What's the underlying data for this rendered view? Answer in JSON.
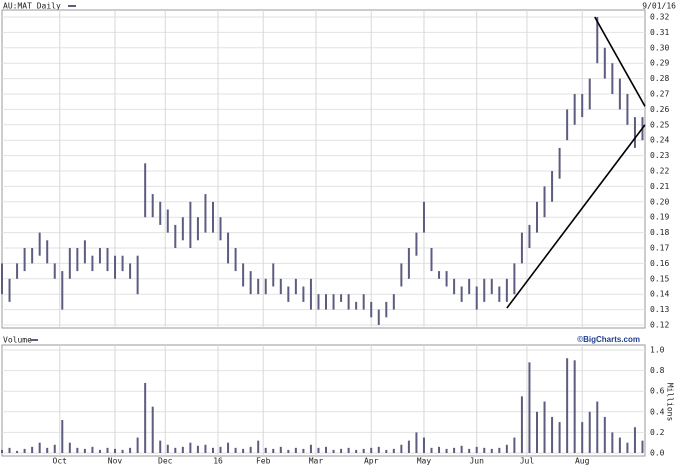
{
  "chart_data": [
    {
      "type": "range",
      "title": "AU:MAT Daily",
      "date": "9/01/16",
      "color": "#5c5c80",
      "grid": true,
      "xlim": [
        0,
        256
      ],
      "xticks": [
        {
          "value": 23,
          "label": "Oct"
        },
        {
          "value": 45,
          "label": "Nov"
        },
        {
          "value": 65,
          "label": "Dec"
        },
        {
          "value": 86,
          "label": "16"
        },
        {
          "value": 104,
          "label": "Feb"
        },
        {
          "value": 125,
          "label": "Mar"
        },
        {
          "value": 147,
          "label": "Apr"
        },
        {
          "value": 168,
          "label": "May"
        },
        {
          "value": 189,
          "label": "Jun"
        },
        {
          "value": 209,
          "label": "Jul"
        },
        {
          "value": 231,
          "label": "Aug"
        }
      ],
      "ylim": [
        0.12,
        0.32
      ],
      "yticks": [
        0.12,
        0.13,
        0.14,
        0.15,
        0.16,
        0.17,
        0.18,
        0.19,
        {
          "value": 0.2,
          "label": "0.20"
        },
        0.21,
        0.22,
        0.23,
        0.24,
        0.25,
        0.26,
        0.27,
        0.28,
        0.29,
        {
          "value": 0.3,
          "label": "0.30"
        },
        0.31,
        0.32
      ],
      "x": [
        0,
        3,
        6,
        9,
        12,
        15,
        18,
        21,
        24,
        27,
        30,
        33,
        36,
        39,
        42,
        45,
        48,
        51,
        54,
        57,
        60,
        63,
        66,
        69,
        72,
        75,
        78,
        81,
        84,
        87,
        90,
        93,
        96,
        99,
        102,
        105,
        108,
        111,
        114,
        117,
        120,
        123,
        126,
        129,
        132,
        135,
        138,
        141,
        144,
        147,
        150,
        153,
        156,
        159,
        162,
        165,
        168,
        171,
        174,
        177,
        180,
        183,
        186,
        189,
        192,
        195,
        198,
        201,
        204,
        207,
        210,
        213,
        216,
        219,
        222,
        225,
        228,
        231,
        234,
        237,
        240,
        243,
        246,
        249,
        252,
        255
      ],
      "high": [
        0.16,
        0.15,
        0.16,
        0.17,
        0.17,
        0.18,
        0.175,
        0.16,
        0.155,
        0.17,
        0.17,
        0.175,
        0.165,
        0.17,
        0.17,
        0.165,
        0.165,
        0.16,
        0.165,
        0.225,
        0.205,
        0.2,
        0.195,
        0.185,
        0.19,
        0.2,
        0.19,
        0.205,
        0.2,
        0.19,
        0.18,
        0.17,
        0.16,
        0.155,
        0.15,
        0.15,
        0.16,
        0.15,
        0.145,
        0.15,
        0.145,
        0.15,
        0.14,
        0.14,
        0.14,
        0.14,
        0.14,
        0.135,
        0.14,
        0.135,
        0.13,
        0.135,
        0.14,
        0.16,
        0.17,
        0.18,
        0.2,
        0.17,
        0.155,
        0.155,
        0.15,
        0.145,
        0.15,
        0.145,
        0.15,
        0.15,
        0.145,
        0.15,
        0.16,
        0.18,
        0.185,
        0.2,
        0.21,
        0.22,
        0.235,
        0.26,
        0.27,
        0.27,
        0.28,
        0.32,
        0.3,
        0.29,
        0.28,
        0.27,
        0.255,
        0.255
      ],
      "low": [
        0.14,
        0.135,
        0.15,
        0.155,
        0.16,
        0.165,
        0.16,
        0.15,
        0.13,
        0.15,
        0.155,
        0.16,
        0.155,
        0.16,
        0.155,
        0.15,
        0.155,
        0.15,
        0.14,
        0.19,
        0.19,
        0.185,
        0.18,
        0.17,
        0.175,
        0.17,
        0.175,
        0.18,
        0.18,
        0.175,
        0.16,
        0.155,
        0.145,
        0.14,
        0.14,
        0.14,
        0.145,
        0.14,
        0.135,
        0.14,
        0.135,
        0.13,
        0.13,
        0.13,
        0.13,
        0.135,
        0.13,
        0.13,
        0.13,
        0.125,
        0.12,
        0.125,
        0.13,
        0.145,
        0.15,
        0.165,
        0.18,
        0.155,
        0.15,
        0.145,
        0.14,
        0.135,
        0.14,
        0.13,
        0.135,
        0.14,
        0.135,
        0.135,
        0.14,
        0.16,
        0.17,
        0.18,
        0.19,
        0.2,
        0.215,
        0.24,
        0.25,
        0.255,
        0.26,
        0.29,
        0.28,
        0.27,
        0.26,
        0.25,
        0.235,
        0.24
      ],
      "trendlines": [
        {
          "x": [
            201,
            256
          ],
          "y": [
            0.131,
            0.25
          ]
        },
        {
          "x": [
            236,
            256
          ],
          "y": [
            0.32,
            0.262
          ]
        }
      ]
    },
    {
      "type": "bar",
      "title": "Volume",
      "source": "©BigCharts.com",
      "y_label": "Millions",
      "color": "#5c5c80",
      "grid": true,
      "xlim": [
        0,
        256
      ],
      "ylim": [
        0,
        1
      ],
      "yticks": [
        {
          "value": 0,
          "label": "0.0"
        },
        0.2,
        0.4,
        0.6,
        0.8,
        {
          "value": 1,
          "label": "1.0"
        }
      ],
      "x": [
        0,
        3,
        6,
        9,
        12,
        15,
        18,
        21,
        24,
        27,
        30,
        33,
        36,
        39,
        42,
        45,
        48,
        51,
        54,
        57,
        60,
        63,
        66,
        69,
        72,
        75,
        78,
        81,
        84,
        87,
        90,
        93,
        96,
        99,
        102,
        105,
        108,
        111,
        114,
        117,
        120,
        123,
        126,
        129,
        132,
        135,
        138,
        141,
        144,
        147,
        150,
        153,
        156,
        159,
        162,
        165,
        168,
        171,
        174,
        177,
        180,
        183,
        186,
        189,
        192,
        195,
        198,
        201,
        204,
        207,
        210,
        213,
        216,
        219,
        222,
        225,
        228,
        231,
        234,
        237,
        240,
        243,
        246,
        249,
        252,
        255
      ],
      "values": [
        0.03,
        0.05,
        0.02,
        0.04,
        0.06,
        0.1,
        0.05,
        0.08,
        0.32,
        0.1,
        0.05,
        0.04,
        0.06,
        0.03,
        0.05,
        0.04,
        0.03,
        0.05,
        0.15,
        0.68,
        0.45,
        0.12,
        0.08,
        0.05,
        0.06,
        0.1,
        0.07,
        0.08,
        0.05,
        0.06,
        0.1,
        0.05,
        0.04,
        0.06,
        0.12,
        0.05,
        0.04,
        0.06,
        0.03,
        0.05,
        0.04,
        0.08,
        0.05,
        0.06,
        0.03,
        0.04,
        0.05,
        0.03,
        0.04,
        0.05,
        0.06,
        0.03,
        0.04,
        0.08,
        0.12,
        0.2,
        0.15,
        0.05,
        0.06,
        0.04,
        0.05,
        0.07,
        0.04,
        0.06,
        0.05,
        0.04,
        0.05,
        0.08,
        0.15,
        0.55,
        0.88,
        0.4,
        0.5,
        0.35,
        0.3,
        0.92,
        0.9,
        0.3,
        0.4,
        0.5,
        0.35,
        0.2,
        0.15,
        0.1,
        0.25,
        0.12
      ]
    }
  ]
}
